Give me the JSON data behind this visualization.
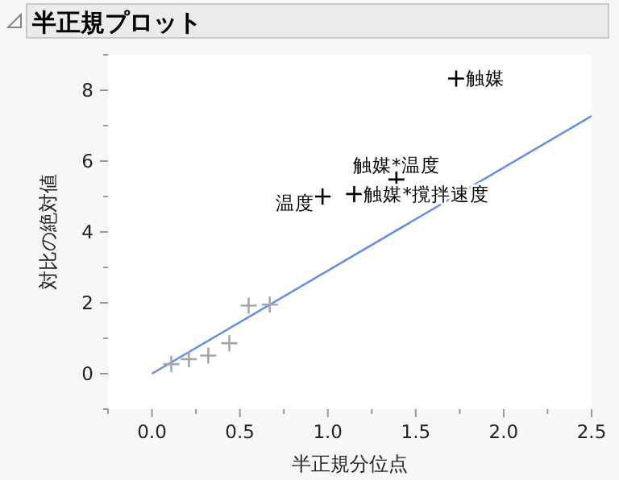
{
  "chart_data": {
    "type": "scatter",
    "title": "半正規プロット",
    "xlabel": "半正規分位点",
    "ylabel": "対比の絶対値",
    "xlim": [
      -0.25,
      2.5
    ],
    "ylim": [
      -1,
      9
    ],
    "xticks": [
      {
        "value": -0.25,
        "label": null
      },
      {
        "value": 0,
        "label": "0.0"
      },
      {
        "value": 0.25,
        "label": null
      },
      {
        "value": 0.5,
        "label": "0.5"
      },
      {
        "value": 0.75,
        "label": null
      },
      {
        "value": 1,
        "label": "1.0"
      },
      {
        "value": 1.25,
        "label": null
      },
      {
        "value": 1.5,
        "label": "1.5"
      },
      {
        "value": 1.75,
        "label": null
      },
      {
        "value": 2,
        "label": "2.0"
      },
      {
        "value": 2.25,
        "label": null
      },
      {
        "value": 2.5,
        "label": "2.5"
      }
    ],
    "yticks": [
      {
        "value": -1,
        "label": null
      },
      0,
      {
        "value": 1,
        "label": null
      },
      2,
      {
        "value": 3,
        "label": null
      },
      4,
      {
        "value": 5,
        "label": null
      },
      6,
      {
        "value": 7,
        "label": null
      },
      8,
      {
        "value": 9,
        "label": null
      }
    ],
    "marker": "cross",
    "grid": false,
    "series": [
      {
        "color": "#a6a6a6",
        "x": [
          0.11,
          0.21,
          0.32,
          0.44,
          0.55,
          0.67
        ],
        "values": [
          0.27,
          0.41,
          0.51,
          0.86,
          1.92,
          1.95
        ]
      },
      {
        "color": "#000000",
        "x": [
          0.97,
          1.15,
          1.39,
          1.73
        ],
        "values": [
          5.0,
          5.07,
          5.48,
          8.33
        ]
      },
      {
        "type": "line",
        "marker": "none",
        "color": "#5b8def",
        "x": [
          0,
          2.5
        ],
        "values": [
          0,
          7.27
        ]
      }
    ],
    "annotations": [
      {
        "text": "触媒",
        "x": 1.73,
        "y": 8.33
      },
      {
        "text": "触媒*温度",
        "x": 1.39,
        "y": 5.48
      },
      {
        "text": "触媒*撹拌速度",
        "x": 1.15,
        "y": 5.07
      },
      {
        "text": "温度",
        "x": 0.97,
        "y": 5.0
      }
    ]
  }
}
